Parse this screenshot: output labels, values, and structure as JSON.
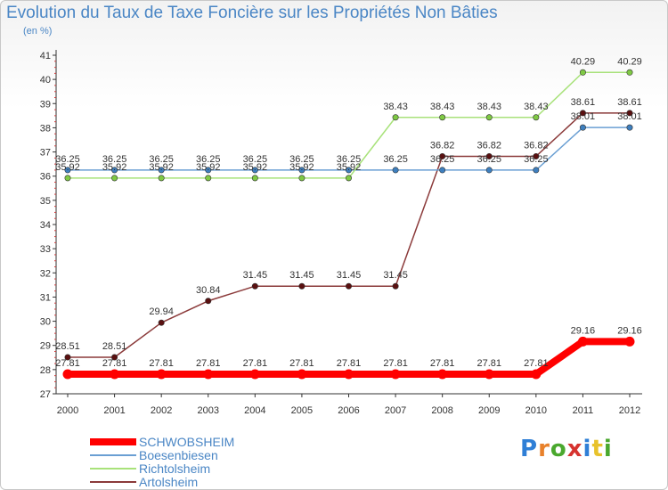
{
  "title": "Evolution du Taux de Taxe Foncière sur les Propriétés Non Bâties",
  "unit": "(en %)",
  "logo": "Proxiti",
  "chart_data": {
    "type": "line",
    "title": "Evolution du Taux de Taxe Foncière sur les Propriétés Non Bâties",
    "ylabel": "(en %)",
    "xlabel": "",
    "categories": [
      "2000",
      "2001",
      "2002",
      "2003",
      "2004",
      "2005",
      "2006",
      "2007",
      "2008",
      "2009",
      "2010",
      "2011",
      "2012"
    ],
    "ylim": [
      27,
      41
    ],
    "yticks": [
      27,
      28,
      29,
      30,
      31,
      32,
      33,
      34,
      35,
      36,
      37,
      38,
      39,
      40,
      41
    ],
    "grid": false,
    "legend_position": "bottom-left",
    "series": [
      {
        "name": "SCHWOBSHEIM",
        "color": "#ff0000",
        "marker": "#ff0000",
        "values": [
          27.81,
          27.81,
          27.81,
          27.81,
          27.81,
          27.81,
          27.81,
          27.81,
          27.81,
          27.81,
          27.81,
          29.16,
          29.16
        ]
      },
      {
        "name": "Boesenbiesen",
        "color": "#6a9fd3",
        "marker": "#3e7fbe",
        "values": [
          36.25,
          36.25,
          36.25,
          36.25,
          36.25,
          36.25,
          36.25,
          36.25,
          36.25,
          36.25,
          36.25,
          38.01,
          38.01
        ]
      },
      {
        "name": "Richtolsheim",
        "color": "#a8e27a",
        "marker": "#7fc944",
        "values": [
          35.92,
          35.92,
          35.92,
          35.92,
          35.92,
          35.92,
          35.92,
          38.43,
          38.43,
          38.43,
          38.43,
          40.29,
          40.29
        ]
      },
      {
        "name": "Artolsheim",
        "color": "#8b3a3a",
        "marker": "#5a1010",
        "values": [
          28.51,
          28.51,
          29.94,
          30.84,
          31.45,
          31.45,
          31.45,
          31.45,
          36.82,
          36.82,
          36.82,
          38.61,
          38.61
        ]
      }
    ]
  },
  "value_labels": {
    "SCHWOBSHEIM": [
      "27.81",
      "27.81",
      "27.81",
      "27.81",
      "27.81",
      "27.81",
      "27.81",
      "27.81",
      "27.81",
      "27.81",
      "27.81",
      "29.16",
      "29.16"
    ],
    "Boesenbiesen": [
      "36.25",
      "36.25",
      "36.25",
      "36.25",
      "36.25",
      "36.25",
      "36.25",
      "36.25",
      "36.25",
      "36.25",
      "36.25",
      "38.01",
      "38.01"
    ],
    "Richtolsheim": [
      "35.92",
      "35.92",
      "35.92",
      "35.92",
      "35.92",
      "35.92",
      "35.92",
      "38.43",
      "38.43",
      "38.43",
      "38.43",
      "40.29",
      "40.29"
    ],
    "Artolsheim": [
      "28.51",
      "28.51",
      "29.94",
      "30.84",
      "31.45",
      "31.45",
      "31.45",
      "31.45",
      "36.82",
      "36.82",
      "36.82",
      "38.61",
      "38.61"
    ]
  }
}
